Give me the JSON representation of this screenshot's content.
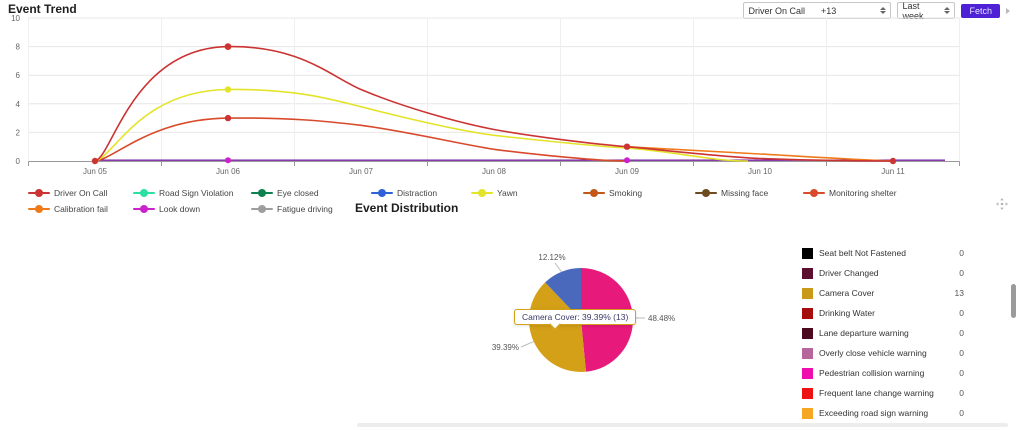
{
  "controls": {
    "driver_label": "Driver On Call",
    "driver_value": "+13",
    "range_value": "Last week",
    "fetch_label": "Fetch",
    "fetch_color": "#4e21d6"
  },
  "trend": {
    "title": "Event Trend"
  },
  "pie": {
    "title": "Event Distribution"
  },
  "chart_data": [
    {
      "type": "line",
      "title": "Event Trend",
      "x": [
        "Jun 05",
        "Jun 06",
        "Jun 07",
        "Jun 08",
        "Jun 09",
        "Jun 10",
        "Jun 11"
      ],
      "ylabel": "",
      "ylim": [
        0,
        10
      ],
      "ytick_labels": [
        "0",
        "2",
        "4",
        "6",
        "8",
        "10"
      ],
      "grid": true,
      "legend_position": "bottom",
      "series": [
        {
          "name": "Driver On Call",
          "color": "#cc3333",
          "values": [
            0,
            8,
            5,
            2.2,
            1,
            0.4,
            0
          ]
        },
        {
          "name": "Road Sign Violation",
          "color": "#2be0a0",
          "values": [
            0,
            0,
            0,
            0,
            0,
            0,
            0
          ]
        },
        {
          "name": "Eye closed",
          "color": "#0d8050",
          "values": [
            0,
            0,
            0,
            0,
            0,
            0,
            0
          ]
        },
        {
          "name": "Distraction",
          "color": "#2e62d9",
          "values": [
            0,
            0,
            0,
            0,
            0,
            0,
            0
          ]
        },
        {
          "name": "Yawn",
          "color": "#e3e32a",
          "values": [
            0,
            5,
            3.8,
            1.8,
            0.9,
            0,
            0
          ]
        },
        {
          "name": "Smoking",
          "color": "#c2571a",
          "values": [
            0,
            0,
            0,
            0,
            0,
            0,
            0
          ]
        },
        {
          "name": "Missing face",
          "color": "#6e4a1f",
          "values": [
            0,
            0,
            0,
            0,
            0,
            0,
            0
          ]
        },
        {
          "name": "Monitoring shelter",
          "color": "#d84a2b",
          "values": [
            0,
            3,
            2.5,
            0.8,
            0,
            0,
            0
          ]
        },
        {
          "name": "Calibration fail",
          "color": "#ef7a1a",
          "values": [
            0,
            0,
            0,
            0,
            1,
            0.5,
            0
          ]
        },
        {
          "name": "Look down",
          "color": "#cc22cc",
          "values": [
            0,
            0,
            0,
            0,
            0,
            0,
            0
          ]
        },
        {
          "name": "Fatigue driving",
          "color": "#9e9e9e",
          "values": [
            0,
            0,
            0,
            0,
            0,
            0,
            0
          ]
        }
      ]
    },
    {
      "type": "pie",
      "title": "Event Distribution",
      "slices": [
        {
          "pct": 48.48,
          "label": "48.48%",
          "color": "#e7197b"
        },
        {
          "pct": 39.39,
          "label": "39.39%",
          "color": "#d4a017",
          "name": "Camera Cover",
          "count": 13
        },
        {
          "pct": 12.12,
          "label": "12.12%",
          "color": "#4a69bd"
        }
      ],
      "slice_labels": [
        "48.48%",
        "12.12%",
        "39.39%"
      ],
      "tooltip": "Camera Cover: 39.39% (13)",
      "legend": [
        {
          "label": "Seat belt Not Fastened",
          "count": "0",
          "color": "#000000"
        },
        {
          "label": "Driver Changed",
          "count": "0",
          "color": "#5c0e2e"
        },
        {
          "label": "Camera Cover",
          "count": "13",
          "color": "#c8991a"
        },
        {
          "label": "Drinking Water",
          "count": "0",
          "color": "#a50d0d"
        },
        {
          "label": "Lane departure warning",
          "count": "0",
          "color": "#4d0a1f"
        },
        {
          "label": "Overly close vehicle warning",
          "count": "0",
          "color": "#b5679c"
        },
        {
          "label": "Pedestrian collision warning",
          "count": "0",
          "color": "#ee0fae"
        },
        {
          "label": "Frequent lane change warning",
          "count": "0",
          "color": "#ee1111"
        },
        {
          "label": "Exceeding road sign warning",
          "count": "0",
          "color": "#f5a623"
        }
      ]
    }
  ]
}
